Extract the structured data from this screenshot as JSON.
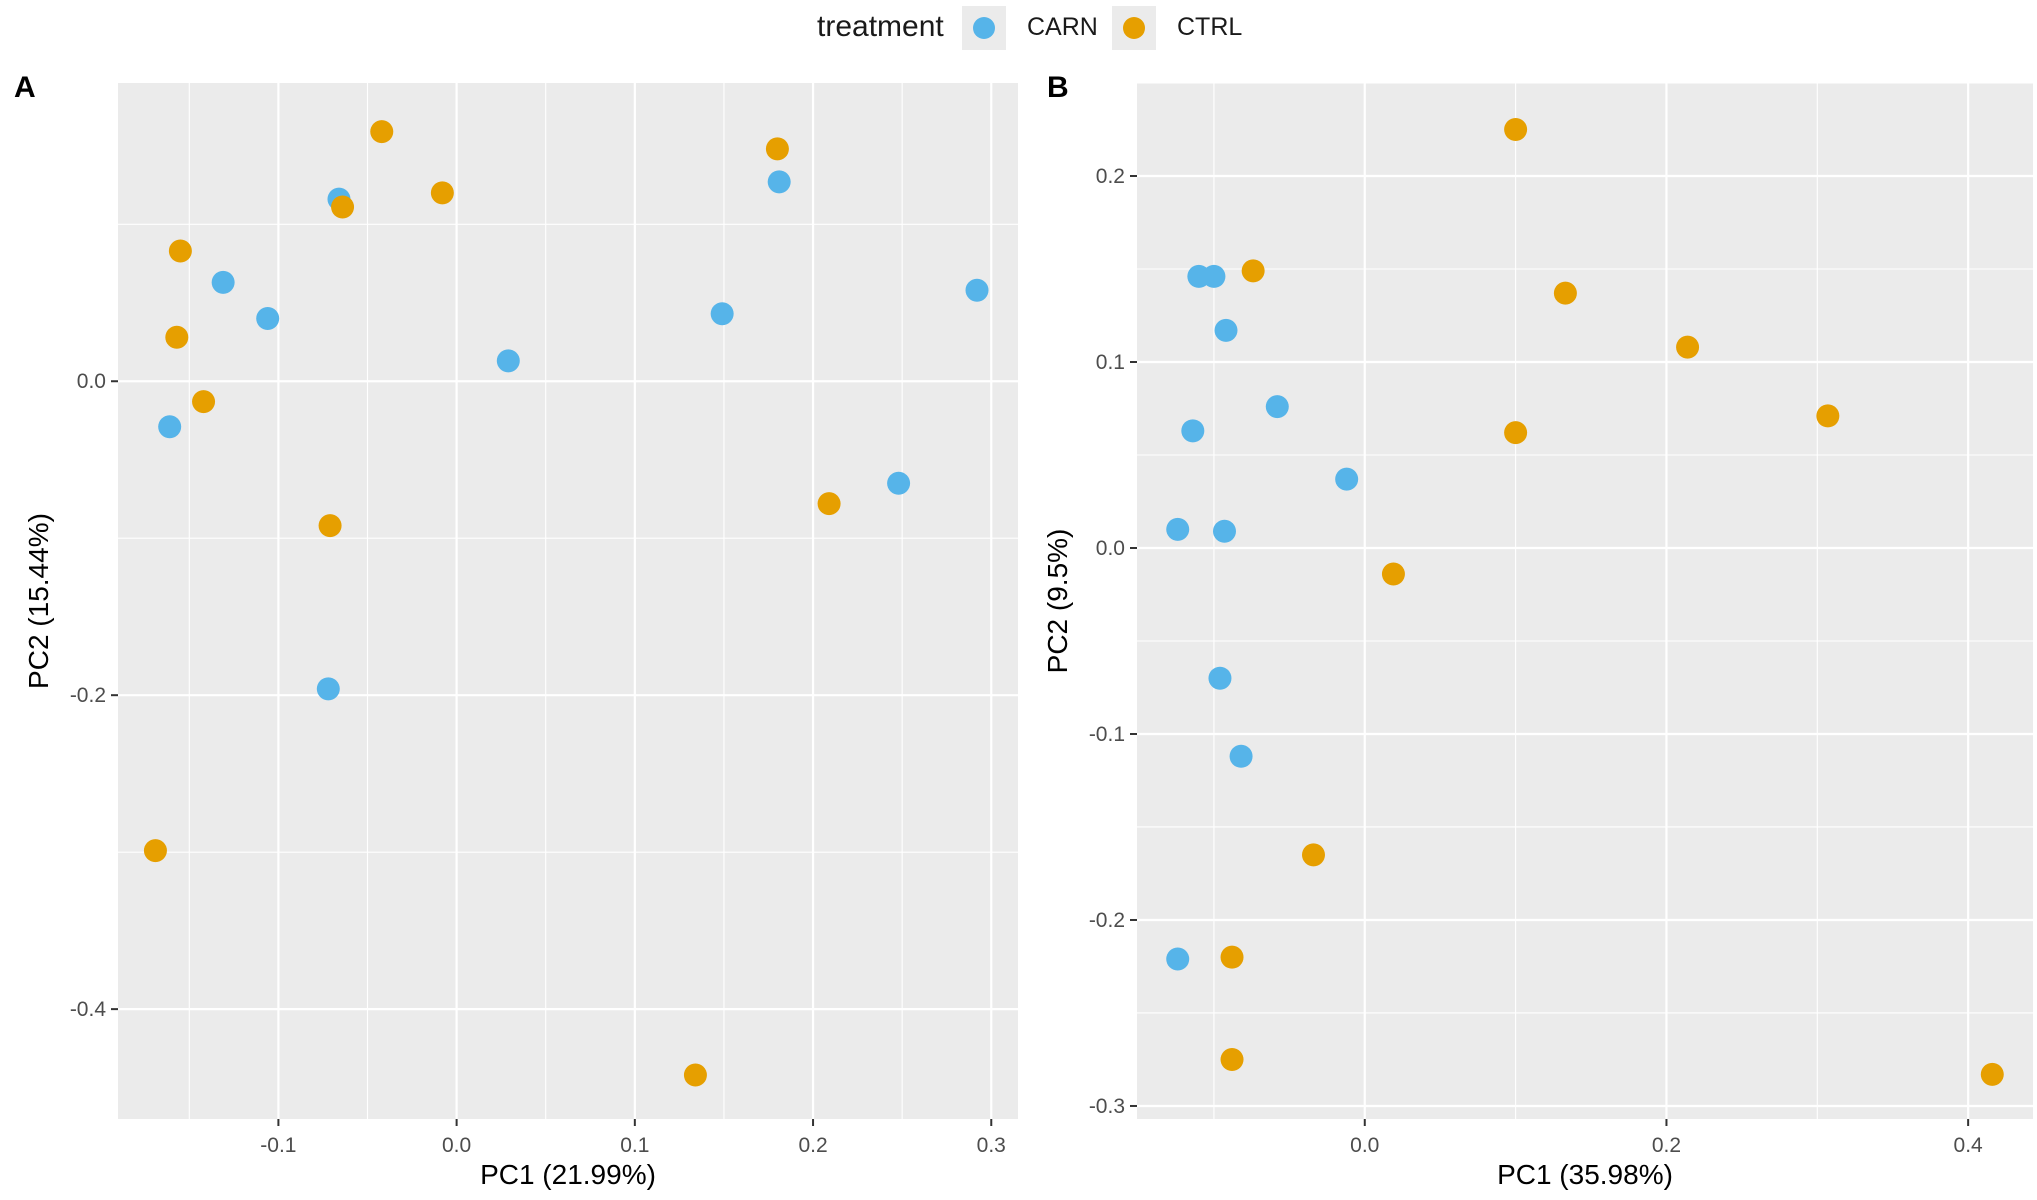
{
  "legend": {
    "title": "treatment",
    "entries": [
      {
        "label": "CARN",
        "color": "#56b4e9"
      },
      {
        "label": "CTRL",
        "color": "#e69f00"
      }
    ]
  },
  "colors": {
    "CARN": "#56b4e9",
    "CTRL": "#e69f00",
    "panel_bg": "#ebebeb",
    "grid": "#ffffff"
  },
  "chart_data": [
    {
      "type": "scatter",
      "tag": "A",
      "title": "",
      "xlabel": "PC1 (21.99%)",
      "ylabel": "PC2 (15.44%)",
      "xlim": [
        -0.19,
        0.315
      ],
      "ylim": [
        -0.47,
        0.19
      ],
      "xticks": [
        -0.1,
        0.0,
        0.1,
        0.2,
        0.3
      ],
      "xtick_labels": [
        "-0.1",
        "0.0",
        "0.1",
        "0.2",
        "0.3"
      ],
      "yticks": [
        -0.4,
        -0.2,
        0.0
      ],
      "ytick_labels": [
        "-0.4",
        "-0.2",
        "0.0"
      ],
      "grid": true,
      "series": [
        {
          "name": "CARN",
          "color": "#56b4e9",
          "points": [
            {
              "x": -0.161,
              "y": -0.029
            },
            {
              "x": -0.131,
              "y": 0.063
            },
            {
              "x": -0.106,
              "y": 0.04
            },
            {
              "x": -0.066,
              "y": 0.116
            },
            {
              "x": -0.072,
              "y": -0.196
            },
            {
              "x": 0.029,
              "y": 0.013
            },
            {
              "x": 0.149,
              "y": 0.043
            },
            {
              "x": 0.181,
              "y": 0.127
            },
            {
              "x": 0.248,
              "y": -0.065
            },
            {
              "x": 0.292,
              "y": 0.058
            }
          ]
        },
        {
          "name": "CTRL",
          "color": "#e69f00",
          "points": [
            {
              "x": -0.155,
              "y": 0.083
            },
            {
              "x": -0.157,
              "y": 0.028
            },
            {
              "x": -0.142,
              "y": -0.013
            },
            {
              "x": -0.071,
              "y": -0.092
            },
            {
              "x": -0.064,
              "y": 0.111
            },
            {
              "x": -0.042,
              "y": 0.159
            },
            {
              "x": -0.008,
              "y": 0.12
            },
            {
              "x": 0.18,
              "y": 0.148
            },
            {
              "x": 0.209,
              "y": -0.078
            },
            {
              "x": -0.169,
              "y": -0.299
            },
            {
              "x": 0.134,
              "y": -0.442
            }
          ]
        }
      ]
    },
    {
      "type": "scatter",
      "tag": "B",
      "title": "",
      "xlabel": "PC1 (35.98%)",
      "ylabel": "PC2 (9.5%)",
      "xlim": [
        -0.151,
        0.443
      ],
      "ylim": [
        -0.307,
        0.25
      ],
      "xticks": [
        0.0,
        0.2,
        0.4
      ],
      "xtick_labels": [
        "0.0",
        "0.2",
        "0.4"
      ],
      "yticks": [
        -0.3,
        -0.2,
        -0.1,
        0.0,
        0.1,
        0.2
      ],
      "ytick_labels": [
        "-0.3",
        "-0.2",
        "-0.1",
        "0.0",
        "0.1",
        "0.2"
      ],
      "grid": true,
      "series": [
        {
          "name": "CARN",
          "color": "#56b4e9",
          "points": [
            {
              "x": -0.11,
              "y": 0.146
            },
            {
              "x": -0.1,
              "y": 0.146
            },
            {
              "x": -0.092,
              "y": 0.117
            },
            {
              "x": -0.114,
              "y": 0.063
            },
            {
              "x": -0.058,
              "y": 0.076
            },
            {
              "x": -0.012,
              "y": 0.037
            },
            {
              "x": -0.124,
              "y": 0.01
            },
            {
              "x": -0.093,
              "y": 0.009
            },
            {
              "x": -0.096,
              "y": -0.07
            },
            {
              "x": -0.082,
              "y": -0.112
            },
            {
              "x": -0.124,
              "y": -0.221
            }
          ]
        },
        {
          "name": "CTRL",
          "color": "#e69f00",
          "points": [
            {
              "x": 0.1,
              "y": 0.225
            },
            {
              "x": -0.074,
              "y": 0.149
            },
            {
              "x": 0.133,
              "y": 0.137
            },
            {
              "x": 0.214,
              "y": 0.108
            },
            {
              "x": 0.307,
              "y": 0.071
            },
            {
              "x": 0.1,
              "y": 0.062
            },
            {
              "x": 0.019,
              "y": -0.014
            },
            {
              "x": -0.034,
              "y": -0.165
            },
            {
              "x": -0.088,
              "y": -0.22
            },
            {
              "x": -0.088,
              "y": -0.275
            },
            {
              "x": 0.416,
              "y": -0.283
            }
          ]
        }
      ]
    }
  ]
}
